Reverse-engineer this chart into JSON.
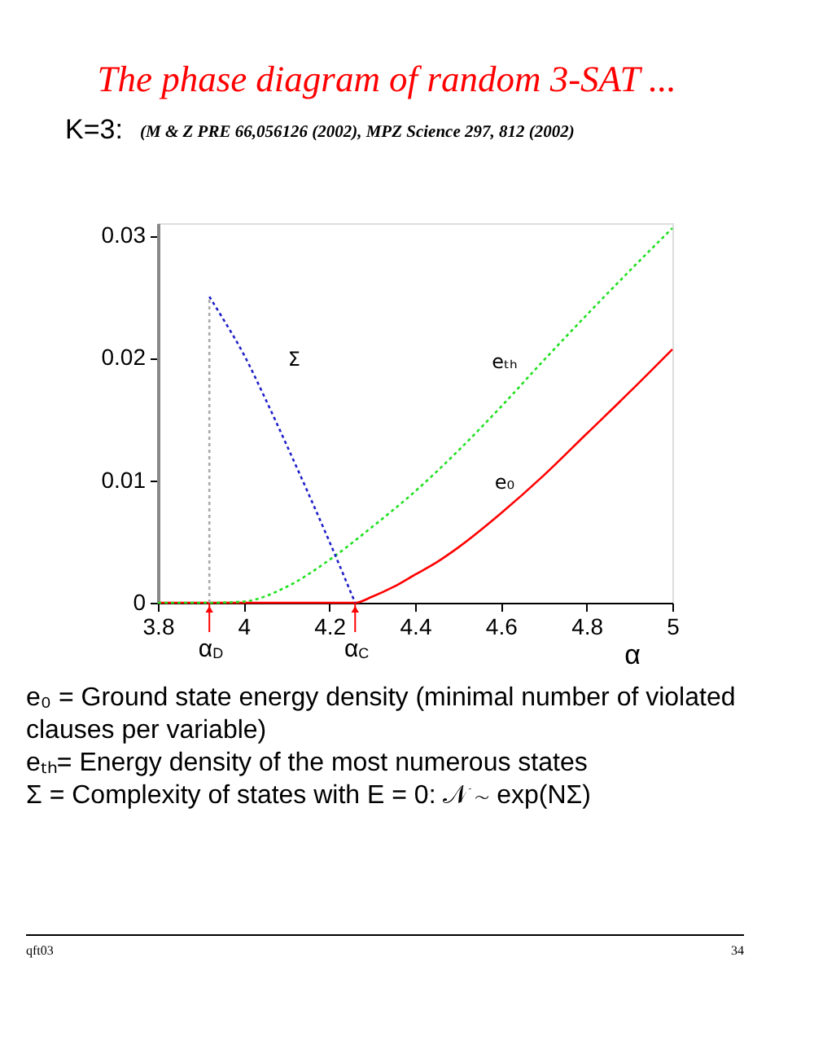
{
  "chart_data": {
    "type": "line",
    "title": "The phase diagram of random 3-SAT ...",
    "subtitle": "(M & Z PRE 66,056126 (2002), MPZ Science 297, 812 (2002)",
    "xlabel": "α",
    "xlim": [
      3.8,
      5.0
    ],
    "ylim": [
      0,
      0.031
    ],
    "xticks": [
      3.8,
      4,
      4.2,
      4.4,
      4.6,
      4.8,
      5
    ],
    "yticks": [
      0,
      0.01,
      0.02,
      0.03
    ],
    "series": [
      {
        "name": "e₀",
        "color": "#ff0000",
        "line_style": "solid",
        "x": [
          3.8,
          4.26,
          4.3,
          4.35,
          4.4,
          4.45,
          4.5,
          4.6,
          4.7,
          4.8,
          4.9,
          5.0
        ],
        "values": [
          0,
          0,
          0.0005,
          0.0013,
          0.0023,
          0.0033,
          0.0045,
          0.0073,
          0.0104,
          0.0138,
          0.0172,
          0.0207
        ]
      },
      {
        "name": "eₜₕ",
        "color": "#20e020",
        "line_style": "dotted",
        "x": [
          3.8,
          3.92,
          4.0,
          4.1,
          4.2,
          4.3,
          4.4,
          4.5,
          4.6,
          4.7,
          4.8,
          4.9,
          5.0
        ],
        "values": [
          0,
          0,
          0.0001,
          0.0013,
          0.0035,
          0.0062,
          0.0091,
          0.0124,
          0.016,
          0.0198,
          0.0235,
          0.0271,
          0.0306
        ]
      },
      {
        "name": "Σ",
        "color": "#2020c8",
        "line_style": "dotted",
        "x": [
          3.92,
          3.95,
          4.0,
          4.05,
          4.1,
          4.15,
          4.2,
          4.26
        ],
        "values": [
          0.025,
          0.0233,
          0.0203,
          0.0167,
          0.0129,
          0.009,
          0.005,
          0
        ]
      },
      {
        "color": "#aaaaaa",
        "line_style": "dotted",
        "x": [
          3.92,
          3.92
        ],
        "values": [
          0,
          0.025
        ]
      }
    ],
    "annotations": [
      "K=3:",
      {
        "text": "α$_{D}$",
        "x": 3.92,
        "y": 0
      },
      {
        "text": "α$_{C}$",
        "x": 4.26,
        "y": 0
      },
      "e₀ = Ground state energy density (minimal number of violated clauses per variable)",
      "eₜₕ= Energy density of the most numerous states",
      "Σ = Complexity of states with E = 0: 𝒩 ∼ exp(NΣ)",
      "qft03",
      "34"
    ]
  }
}
